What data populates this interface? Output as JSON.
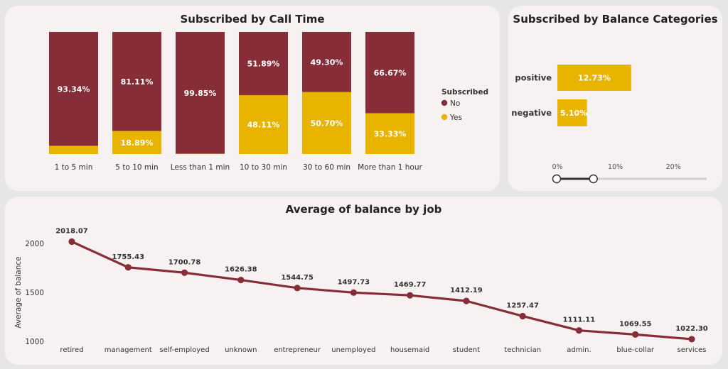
{
  "colors": {
    "no": "#862d38",
    "yes": "#e8b400",
    "line": "#862d38",
    "card_bg": "#f7f1f1",
    "page_bg": "#e6e6e6"
  },
  "chart_data": [
    {
      "type": "bar",
      "stacked": true,
      "percent_stacked": true,
      "title": "Subscribed by Call Time",
      "categories": [
        "1 to 5 min",
        "5 to 10 min",
        "Less than 1 min",
        "10 to 30 min",
        "30 to 60 min",
        "More than 1 hour"
      ],
      "series": [
        {
          "name": "No",
          "values": [
            93.34,
            81.11,
            99.85,
            51.89,
            49.3,
            66.67
          ],
          "labels": [
            "93.34%",
            "81.11%",
            "99.85%",
            "51.89%",
            "49.30%",
            "66.67%"
          ]
        },
        {
          "name": "Yes",
          "values": [
            6.66,
            18.89,
            0.15,
            48.11,
            50.7,
            33.33
          ],
          "labels": [
            "",
            "18.89%",
            "",
            "48.11%",
            "50.70%",
            "33.33%"
          ]
        }
      ],
      "legend": {
        "title": "Subscribed",
        "items": [
          "No",
          "Yes"
        ],
        "placement": "right"
      },
      "ylim": [
        0,
        100
      ]
    },
    {
      "type": "bar",
      "orientation": "horizontal",
      "title": "Subscribed by Balance Categories",
      "categories": [
        "positive",
        "negative"
      ],
      "values": [
        12.73,
        5.1
      ],
      "labels": [
        "12.73%",
        "5.10%"
      ],
      "xticks": [
        "0%",
        "10%",
        "20%"
      ],
      "xlim": [
        0,
        25
      ]
    },
    {
      "type": "line",
      "title": "Average of balance by job",
      "ylabel": "Average of balance",
      "categories": [
        "retired",
        "management",
        "self-employed",
        "unknown",
        "entrepreneur",
        "unemployed",
        "housemaid",
        "student",
        "technician",
        "admin.",
        "blue-collar",
        "services"
      ],
      "values": [
        2018.07,
        1755.43,
        1700.78,
        1626.38,
        1544.75,
        1497.73,
        1469.77,
        1412.19,
        1257.47,
        1111.11,
        1069.55,
        1022.3
      ],
      "labels": [
        "2018.07",
        "1755.43",
        "1700.78",
        "1626.38",
        "1544.75",
        "1497.73",
        "1469.77",
        "1412.19",
        "1257.47",
        "1111.11",
        "1069.55",
        "1022.30"
      ],
      "yticks": [
        "1000",
        "1500",
        "2000"
      ],
      "ylim": [
        1000,
        2000
      ]
    }
  ],
  "slider": {
    "min_fraction": 0,
    "max_fraction": 0.245
  }
}
